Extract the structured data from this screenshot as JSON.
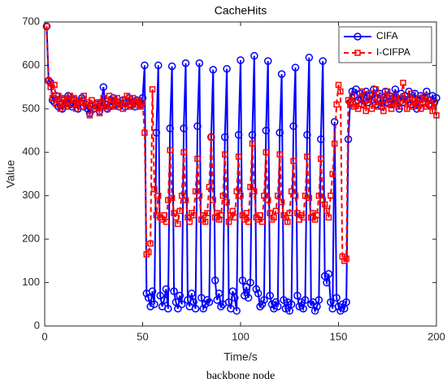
{
  "chart_data": {
    "type": "line",
    "title": "CacheHits",
    "xlabel": "Time/s",
    "ylabel": "Value",
    "caption": "backbone node",
    "x": [
      1,
      2,
      3,
      4,
      5,
      6,
      7,
      8,
      9,
      10,
      11,
      12,
      13,
      14,
      15,
      16,
      17,
      18,
      19,
      20,
      21,
      22,
      23,
      24,
      25,
      26,
      27,
      28,
      29,
      30,
      31,
      32,
      33,
      34,
      35,
      36,
      37,
      38,
      39,
      40,
      41,
      42,
      43,
      44,
      45,
      46,
      47,
      48,
      49,
      50,
      51,
      52,
      53,
      54,
      55,
      56,
      57,
      58,
      59,
      60,
      61,
      62,
      63,
      64,
      65,
      66,
      67,
      68,
      69,
      70,
      71,
      72,
      73,
      74,
      75,
      76,
      77,
      78,
      79,
      80,
      81,
      82,
      83,
      84,
      85,
      86,
      87,
      88,
      89,
      90,
      91,
      92,
      93,
      94,
      95,
      96,
      97,
      98,
      99,
      100,
      101,
      102,
      103,
      104,
      105,
      106,
      107,
      108,
      109,
      110,
      111,
      112,
      113,
      114,
      115,
      116,
      117,
      118,
      119,
      120,
      121,
      122,
      123,
      124,
      125,
      126,
      127,
      128,
      129,
      130,
      131,
      132,
      133,
      134,
      135,
      136,
      137,
      138,
      139,
      140,
      141,
      142,
      143,
      144,
      145,
      146,
      147,
      148,
      149,
      150,
      151,
      152,
      153,
      154,
      155,
      156,
      157,
      158,
      159,
      160,
      161,
      162,
      163,
      164,
      165,
      166,
      167,
      168,
      169,
      170,
      171,
      172,
      173,
      174,
      175,
      176,
      177,
      178,
      179,
      180,
      181,
      182,
      183,
      184,
      185,
      186,
      187,
      188,
      189,
      190,
      191,
      192,
      193,
      194,
      195,
      196,
      197,
      198,
      199,
      200
    ],
    "series": [
      {
        "name": "CIFA",
        "color": "#0000ff",
        "marker": "circle",
        "values": [
          690,
          565,
          560,
          520,
          515,
          530,
          505,
          510,
          500,
          520,
          515,
          530,
          510,
          505,
          520,
          510,
          500,
          515,
          525,
          505,
          510,
          500,
          490,
          505,
          500,
          510,
          505,
          495,
          515,
          550,
          510,
          500,
          505,
          520,
          525,
          510,
          515,
          505,
          510,
          520,
          505,
          515,
          525,
          510,
          515,
          505,
          520,
          515,
          510,
          525,
          600,
          75,
          65,
          45,
          80,
          50,
          445,
          600,
          70,
          45,
          60,
          85,
          40,
          455,
          598,
          80,
          55,
          40,
          70,
          50,
          455,
          605,
          60,
          45,
          75,
          55,
          40,
          460,
          605,
          65,
          40,
          50,
          60,
          55,
          435,
          590,
          105,
          60,
          75,
          45,
          50,
          435,
          592,
          55,
          40,
          80,
          65,
          35,
          440,
          612,
          105,
          70,
          90,
          65,
          100,
          440,
          622,
          85,
          75,
          45,
          50,
          60,
          450,
          610,
          70,
          50,
          40,
          55,
          45,
          445,
          580,
          60,
          40,
          55,
          35,
          50,
          460,
          595,
          70,
          45,
          55,
          40,
          60,
          440,
          618,
          50,
          55,
          35,
          45,
          60,
          430,
          610,
          115,
          100,
          120,
          55,
          40,
          470,
          65,
          45,
          35,
          50,
          40,
          55,
          430,
          515,
          540,
          530,
          545,
          520,
          535,
          510,
          525,
          540,
          515,
          530,
          520,
          545,
          510,
          525,
          535,
          505,
          520,
          540,
          515,
          530,
          510,
          525,
          545,
          520,
          500,
          535,
          515,
          530,
          520,
          540,
          510,
          525,
          535,
          500,
          520,
          530,
          515,
          525,
          540,
          510,
          520,
          530,
          515,
          525
        ]
      },
      {
        "name": "I-CIFPA",
        "color": "#ff0000",
        "marker": "square",
        "values": [
          690,
          565,
          550,
          525,
          555,
          510,
          530,
          500,
          515,
          525,
          505,
          520,
          530,
          510,
          525,
          500,
          520,
          515,
          505,
          530,
          510,
          515,
          485,
          520,
          500,
          505,
          515,
          490,
          510,
          525,
          505,
          500,
          530,
          510,
          520,
          505,
          525,
          515,
          510,
          500,
          520,
          530,
          510,
          505,
          525,
          515,
          510,
          520,
          505,
          515,
          445,
          165,
          170,
          190,
          545,
          315,
          255,
          300,
          250,
          245,
          255,
          240,
          290,
          405,
          295,
          260,
          250,
          235,
          265,
          300,
          400,
          290,
          250,
          240,
          260,
          255,
          310,
          385,
          300,
          245,
          255,
          240,
          260,
          320,
          435,
          290,
          250,
          260,
          245,
          255,
          300,
          395,
          285,
          240,
          255,
          265,
          250,
          310,
          390,
          300,
          255,
          245,
          260,
          240,
          320,
          420,
          310,
          250,
          245,
          255,
          240,
          300,
          400,
          290,
          260,
          245,
          250,
          265,
          300,
          395,
          285,
          255,
          250,
          240,
          260,
          310,
          380,
          300,
          260,
          245,
          255,
          250,
          300,
          390,
          295,
          250,
          260,
          245,
          255,
          300,
          385,
          290,
          280,
          265,
          250,
          300,
          350,
          420,
          510,
          555,
          540,
          160,
          150,
          155,
          520,
          510,
          530,
          505,
          515,
          500,
          525,
          540,
          510,
          495,
          520,
          535,
          500,
          515,
          545,
          505,
          520,
          530,
          495,
          510,
          540,
          525,
          500,
          515,
          530,
          510,
          505,
          525,
          560,
          520,
          500,
          515,
          535,
          505,
          520,
          510,
          525,
          500,
          515,
          530,
          505,
          520,
          510,
          495,
          515,
          485
        ]
      }
    ],
    "xlim": [
      0,
      200
    ],
    "xticks": [
      0,
      50,
      100,
      150,
      200
    ],
    "ylim": [
      0,
      700
    ],
    "yticks": [
      0,
      100,
      200,
      300,
      400,
      500,
      600,
      700
    ],
    "grid": false,
    "legend": "northeast"
  }
}
